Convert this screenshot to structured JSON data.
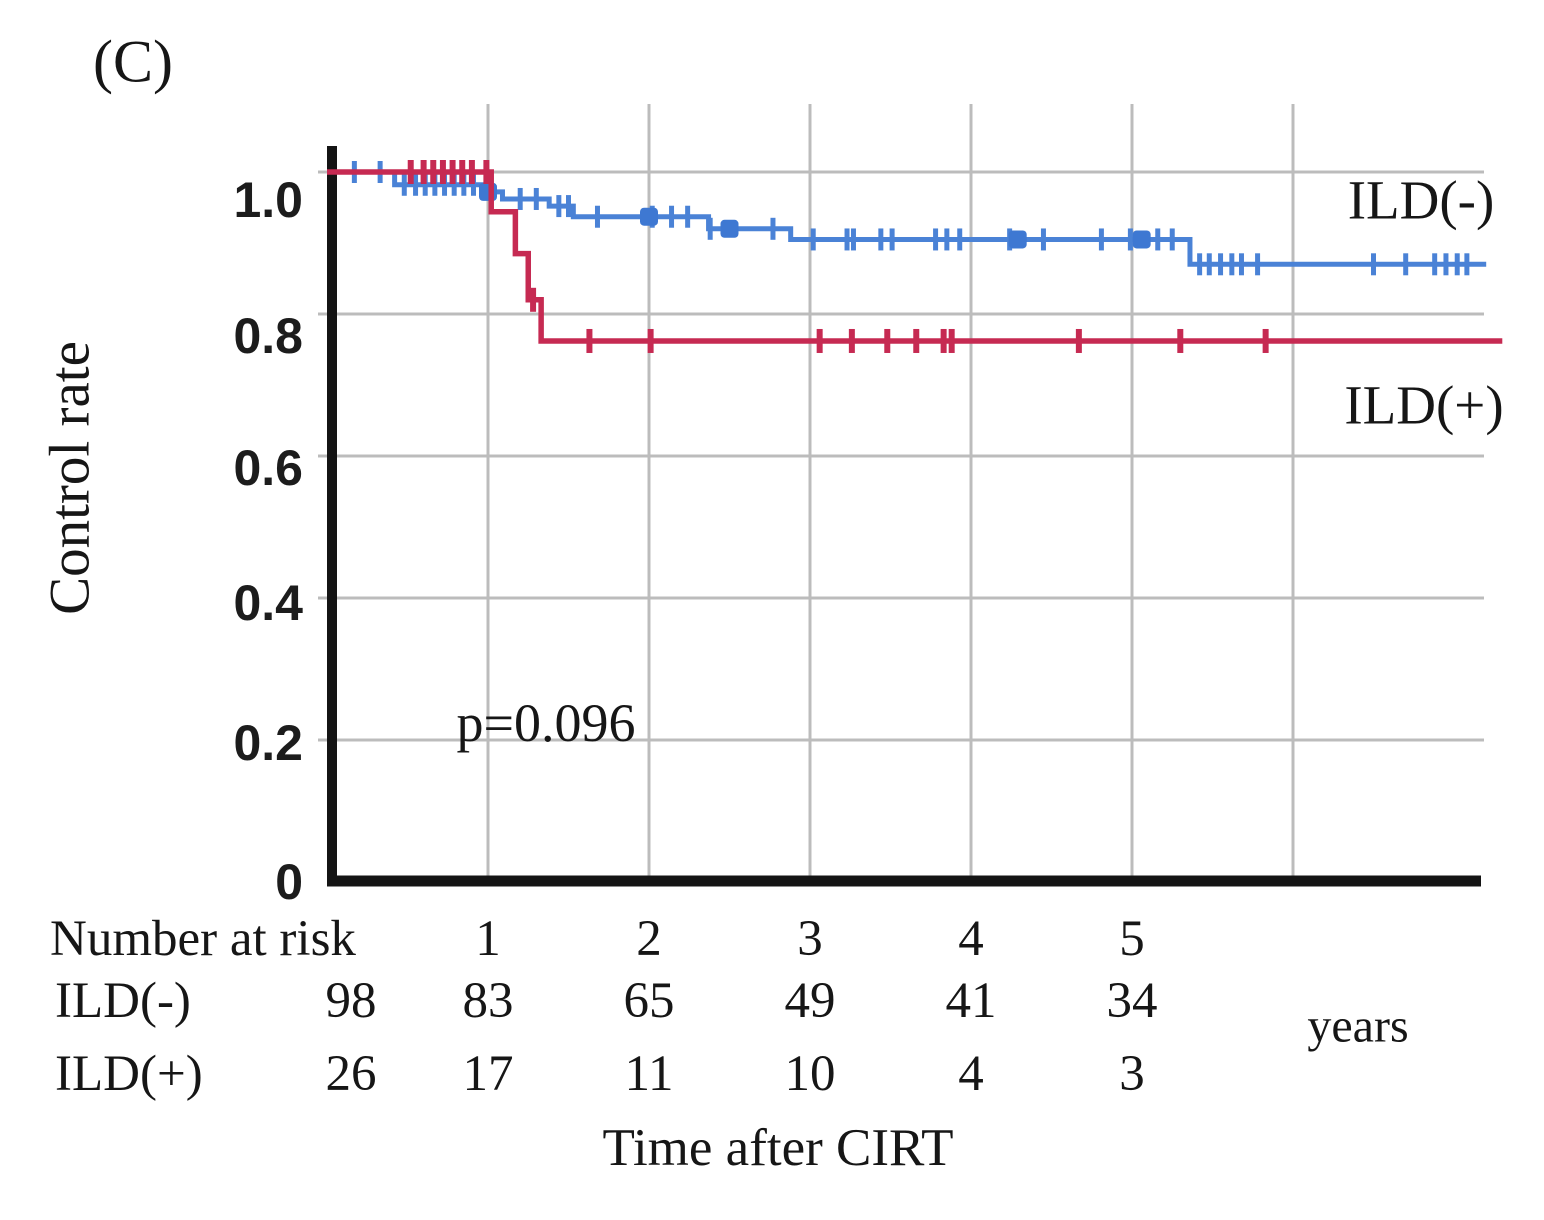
{
  "figure": {
    "panel_label": "(C)",
    "p_value_text": "p=0.096"
  },
  "colors": {
    "ild_neg": "#4a82d6",
    "ild_neg_marker": "#3e78d2",
    "ild_pos": "#c62a52",
    "grid": "#bcbcbc",
    "axis": "#141414",
    "text": "#161616"
  },
  "chart_data": {
    "type": "line",
    "subtype": "kaplan_meier_step",
    "title": "",
    "p_value": 0.096,
    "p_value_text": "p=0.096",
    "y_axis": {
      "label": "Control rate",
      "range": [
        0,
        1.05
      ],
      "tick_labels": [
        "1.0",
        "0.8",
        "0.6",
        "0.4",
        "0.2",
        "0"
      ],
      "tick_values": [
        1.0,
        0.8,
        0.6,
        0.4,
        0.2,
        0
      ],
      "grid": true
    },
    "x_axis": {
      "label": "Time after CIRT",
      "unit_label": "years",
      "range_years": [
        0,
        7.2
      ],
      "tick_labels": [
        "1",
        "2",
        "3",
        "4",
        "5"
      ],
      "tick_values": [
        1,
        2,
        3,
        4,
        5
      ],
      "gridline_years": [
        1,
        2,
        3,
        4,
        5,
        6
      ],
      "grid": true
    },
    "series": [
      {
        "id": "ild-neg",
        "name": "ILD(-)",
        "color_key": "ild_neg",
        "end_t": 7.2,
        "steps": [
          [
            0,
            1.0
          ],
          [
            0.42,
            0.982
          ],
          [
            0.97,
            0.972
          ],
          [
            1.09,
            0.962
          ],
          [
            1.38,
            0.952
          ],
          [
            1.53,
            0.937
          ],
          [
            2.37,
            0.92
          ],
          [
            2.88,
            0.905
          ],
          [
            5.36,
            0.87
          ]
        ],
        "censors": [
          [
            0.17,
            1.0
          ],
          [
            0.33,
            1.0
          ],
          [
            0.48,
            0.982
          ],
          [
            0.55,
            0.982
          ],
          [
            0.61,
            0.982
          ],
          [
            0.67,
            0.982
          ],
          [
            0.73,
            0.982
          ],
          [
            0.79,
            0.982
          ],
          [
            0.85,
            0.982
          ],
          [
            0.91,
            0.982
          ],
          [
            1.2,
            0.962
          ],
          [
            1.3,
            0.962
          ],
          [
            1.44,
            0.952
          ],
          [
            1.5,
            0.952
          ],
          [
            1.68,
            0.937
          ],
          [
            2.02,
            0.937
          ],
          [
            2.14,
            0.937
          ],
          [
            2.24,
            0.937
          ],
          [
            2.38,
            0.92
          ],
          [
            2.77,
            0.92
          ],
          [
            3.02,
            0.905
          ],
          [
            3.23,
            0.905
          ],
          [
            3.27,
            0.905
          ],
          [
            3.44,
            0.905
          ],
          [
            3.51,
            0.905
          ],
          [
            3.78,
            0.905
          ],
          [
            3.85,
            0.905
          ],
          [
            3.93,
            0.905
          ],
          [
            4.24,
            0.905
          ],
          [
            4.45,
            0.905
          ],
          [
            4.81,
            0.905
          ],
          [
            4.99,
            0.905
          ],
          [
            5.16,
            0.905
          ],
          [
            5.25,
            0.905
          ],
          [
            5.42,
            0.87
          ],
          [
            5.48,
            0.87
          ],
          [
            5.55,
            0.87
          ],
          [
            5.62,
            0.87
          ],
          [
            5.68,
            0.87
          ],
          [
            5.78,
            0.87
          ],
          [
            6.5,
            0.87
          ],
          [
            6.7,
            0.87
          ],
          [
            6.88,
            0.87
          ],
          [
            6.95,
            0.87
          ],
          [
            7.02,
            0.87
          ],
          [
            7.08,
            0.87
          ]
        ],
        "square_censors": [
          [
            1.0,
            0.972
          ],
          [
            2.0,
            0.937
          ],
          [
            2.5,
            0.92
          ],
          [
            4.29,
            0.905
          ],
          [
            5.06,
            0.905
          ]
        ]
      },
      {
        "id": "ild-pos",
        "name": "ILD(+)",
        "color_key": "ild_pos",
        "end_t": 7.3,
        "steps": [
          [
            0,
            1.0
          ],
          [
            1.02,
            0.944
          ],
          [
            1.17,
            0.885
          ],
          [
            1.25,
            0.82
          ],
          [
            1.33,
            0.762
          ]
        ],
        "censors": [
          [
            0.52,
            1.0
          ],
          [
            0.6,
            1.0
          ],
          [
            0.66,
            1.0
          ],
          [
            0.72,
            1.0
          ],
          [
            0.78,
            1.0
          ],
          [
            0.84,
            1.0
          ],
          [
            0.9,
            1.0
          ],
          [
            0.99,
            1.0
          ],
          [
            1.28,
            0.82
          ],
          [
            1.63,
            0.762
          ],
          [
            2.01,
            0.762
          ],
          [
            3.06,
            0.762
          ],
          [
            3.26,
            0.762
          ],
          [
            3.48,
            0.762
          ],
          [
            3.66,
            0.762
          ],
          [
            3.83,
            0.762
          ],
          [
            3.88,
            0.762
          ],
          [
            4.67,
            0.762
          ],
          [
            5.3,
            0.762
          ],
          [
            5.83,
            0.762
          ]
        ],
        "square_censors": []
      }
    ],
    "risk_table": {
      "title": "Number at risk",
      "time_labels": [
        "1",
        "2",
        "3",
        "4",
        "5"
      ],
      "rows": [
        {
          "label": "ILD(-)",
          "values": [
            "98",
            "83",
            "65",
            "49",
            "41",
            "34"
          ]
        },
        {
          "label": "ILD(+)",
          "values": [
            "26",
            "17",
            "11",
            "10",
            "4",
            "3"
          ]
        }
      ]
    }
  }
}
